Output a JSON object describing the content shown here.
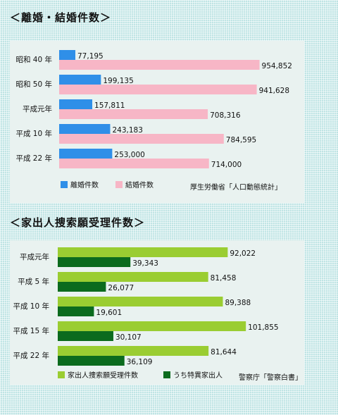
{
  "chart_data": [
    {
      "type": "bar",
      "orientation": "horizontal",
      "title": "＜離婚・結婚件数＞",
      "categories": [
        "昭和 40 年",
        "昭和 50 年",
        "平成元年",
        "平成 10 年",
        "平成 22 年"
      ],
      "series": [
        {
          "name": "離婚件数",
          "color": "#2f8fe8",
          "values": [
            77195,
            199135,
            157811,
            243183,
            253000
          ],
          "labels": [
            "77,195",
            "199,135",
            "157,811",
            "243,183",
            "253,000"
          ]
        },
        {
          "name": "結婚件数",
          "color": "#f7b6c6",
          "values": [
            954852,
            941628,
            708316,
            784595,
            714000
          ],
          "labels": [
            "954,852",
            "941,628",
            "708,316",
            "784,595",
            "714,000"
          ]
        }
      ],
      "xlim": [
        0,
        1000000
      ],
      "grid": false,
      "legend": "bottom",
      "source": "厚生労働省「人口動態統計」"
    },
    {
      "type": "bar",
      "orientation": "horizontal",
      "title": "＜家出人捜索願受理件数＞",
      "categories": [
        "平成元年",
        "平成 5 年",
        "平成 10 年",
        "平成 15 年",
        "平成 22 年"
      ],
      "series": [
        {
          "name": "家出人捜索願受理件数",
          "color": "#9acd32",
          "values": [
            92022,
            81458,
            89388,
            101855,
            81644
          ],
          "labels": [
            "92,022",
            "81,458",
            "89,388",
            "101,855",
            "81,644"
          ]
        },
        {
          "name": "うち特異家出人",
          "color": "#0b6b1e",
          "values": [
            39343,
            26077,
            19601,
            30107,
            36109
          ],
          "labels": [
            "39,343",
            "26,077",
            "19,601",
            "30,107",
            "36,109"
          ]
        }
      ],
      "xlim": [
        0,
        122000
      ],
      "grid": false,
      "legend": "bottom",
      "source": "警察庁「警察白書」"
    }
  ]
}
